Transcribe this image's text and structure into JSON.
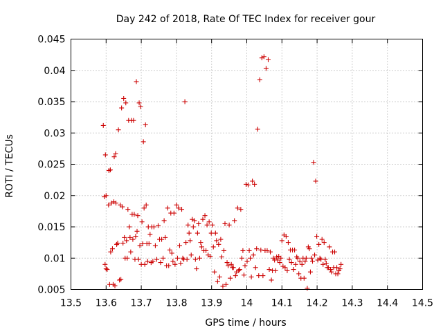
{
  "chart_data": {
    "type": "scatter",
    "title": "Day 242 of 2018, Rate Of TEC Index for receiver gour",
    "xlabel": "GPS time / hours",
    "ylabel": "ROTI / TECUs",
    "xlim": [
      13.5,
      14.5
    ],
    "ylim": [
      0.005,
      0.045
    ],
    "xticks": [
      "13.5",
      "13.6",
      "13.7",
      "13.8",
      "13.9",
      "14",
      "14.1",
      "14.2",
      "14.3",
      "14.4",
      "14.5"
    ],
    "yticks": [
      "0.005",
      "0.01",
      "0.015",
      "0.02",
      "0.025",
      "0.03",
      "0.035",
      "0.04",
      "0.045"
    ],
    "grid": true,
    "marker": "+",
    "color": "#cc0000",
    "series": [
      {
        "name": "ROTI",
        "points": [
          [
            13.592,
            0.0312
          ],
          [
            13.595,
            0.0198
          ],
          [
            13.597,
            0.009
          ],
          [
            13.6,
            0.0083
          ],
          [
            13.598,
            0.0265
          ],
          [
            13.6,
            0.02
          ],
          [
            13.603,
            0.0082
          ],
          [
            13.607,
            0.0185
          ],
          [
            13.608,
            0.024
          ],
          [
            13.61,
            0.0058
          ],
          [
            13.612,
            0.0241
          ],
          [
            13.613,
            0.011
          ],
          [
            13.615,
            0.0188
          ],
          [
            13.618,
            0.0115
          ],
          [
            13.62,
            0.0058
          ],
          [
            13.622,
            0.019
          ],
          [
            13.623,
            0.0262
          ],
          [
            13.625,
            0.0056
          ],
          [
            13.627,
            0.0267
          ],
          [
            13.628,
            0.0188
          ],
          [
            13.63,
            0.0122
          ],
          [
            13.633,
            0.0124
          ],
          [
            13.635,
            0.0305
          ],
          [
            13.638,
            0.0065
          ],
          [
            13.64,
            0.0185
          ],
          [
            13.642,
            0.0066
          ],
          [
            13.644,
            0.034
          ],
          [
            13.646,
            0.0182
          ],
          [
            13.648,
            0.0124
          ],
          [
            13.65,
            0.0355
          ],
          [
            13.652,
            0.0133
          ],
          [
            13.654,
            0.01
          ],
          [
            13.656,
            0.0348
          ],
          [
            13.658,
            0.0128
          ],
          [
            13.66,
            0.01
          ],
          [
            13.662,
            0.0178
          ],
          [
            13.664,
            0.032
          ],
          [
            13.666,
            0.015
          ],
          [
            13.668,
            0.0133
          ],
          [
            13.67,
            0.011
          ],
          [
            13.672,
            0.032
          ],
          [
            13.674,
            0.017
          ],
          [
            13.676,
            0.013
          ],
          [
            13.678,
            0.032
          ],
          [
            13.68,
            0.017
          ],
          [
            13.682,
            0.0098
          ],
          [
            13.684,
            0.0135
          ],
          [
            13.686,
            0.0382
          ],
          [
            13.688,
            0.0143
          ],
          [
            13.69,
            0.0168
          ],
          [
            13.692,
            0.0098
          ],
          [
            13.694,
            0.0348
          ],
          [
            13.696,
            0.012
          ],
          [
            13.698,
            0.0342
          ],
          [
            13.7,
            0.009
          ],
          [
            13.702,
            0.0158
          ],
          [
            13.704,
            0.0123
          ],
          [
            13.706,
            0.0286
          ],
          [
            13.708,
            0.018
          ],
          [
            13.71,
            0.009
          ],
          [
            13.712,
            0.0313
          ],
          [
            13.714,
            0.0185
          ],
          [
            13.716,
            0.0123
          ],
          [
            13.718,
            0.0095
          ],
          [
            13.72,
            0.015
          ],
          [
            13.722,
            0.0123
          ],
          [
            13.725,
            0.0138
          ],
          [
            13.728,
            0.0093
          ],
          [
            13.73,
            0.015
          ],
          [
            13.733,
            0.0095
          ],
          [
            13.736,
            0.015
          ],
          [
            13.74,
            0.012
          ],
          [
            13.744,
            0.0098
          ],
          [
            13.748,
            0.0152
          ],
          [
            13.752,
            0.013
          ],
          [
            13.755,
            0.0093
          ],
          [
            13.758,
            0.013
          ],
          [
            13.762,
            0.01
          ],
          [
            13.765,
            0.016
          ],
          [
            13.768,
            0.0133
          ],
          [
            13.772,
            0.0088
          ],
          [
            13.775,
            0.018
          ],
          [
            13.778,
            0.0088
          ],
          [
            13.781,
            0.0113
          ],
          [
            13.784,
            0.0172
          ],
          [
            13.787,
            0.0108
          ],
          [
            13.79,
            0.0095
          ],
          [
            13.793,
            0.0172
          ],
          [
            13.796,
            0.009
          ],
          [
            13.8,
            0.0185
          ],
          [
            13.803,
            0.01
          ],
          [
            13.806,
            0.018
          ],
          [
            13.809,
            0.012
          ],
          [
            13.812,
            0.0092
          ],
          [
            13.815,
            0.0178
          ],
          [
            13.818,
            0.01
          ],
          [
            13.821,
            0.0098
          ],
          [
            13.824,
            0.035
          ],
          [
            13.827,
            0.0125
          ],
          [
            13.83,
            0.0098
          ],
          [
            13.833,
            0.0153
          ],
          [
            13.836,
            0.014
          ],
          [
            13.839,
            0.0128
          ],
          [
            13.842,
            0.0105
          ],
          [
            13.845,
            0.0162
          ],
          [
            13.848,
            0.015
          ],
          [
            13.851,
            0.016
          ],
          [
            13.854,
            0.0098
          ],
          [
            13.857,
            0.0083
          ],
          [
            13.86,
            0.014
          ],
          [
            13.863,
            0.0155
          ],
          [
            13.866,
            0.01
          ],
          [
            13.869,
            0.0125
          ],
          [
            13.872,
            0.0118
          ],
          [
            13.875,
            0.0162
          ],
          [
            13.878,
            0.0112
          ],
          [
            13.881,
            0.0168
          ],
          [
            13.884,
            0.0112
          ],
          [
            13.887,
            0.0153
          ],
          [
            13.89,
            0.0105
          ],
          [
            13.893,
            0.0158
          ],
          [
            13.896,
            0.0103
          ],
          [
            13.899,
            0.014
          ],
          [
            13.902,
            0.0153
          ],
          [
            13.905,
            0.0118
          ],
          [
            13.908,
            0.0078
          ],
          [
            13.911,
            0.014
          ],
          [
            13.914,
            0.0128
          ],
          [
            13.917,
            0.0063
          ],
          [
            13.92,
            0.0122
          ],
          [
            13.923,
            0.007
          ],
          [
            13.926,
            0.013
          ],
          [
            13.929,
            0.0102
          ],
          [
            13.932,
            0.0055
          ],
          [
            13.935,
            0.0112
          ],
          [
            13.938,
            0.0155
          ],
          [
            13.941,
            0.0058
          ],
          [
            13.944,
            0.0093
          ],
          [
            13.947,
            0.0088
          ],
          [
            13.95,
            0.0153
          ],
          [
            13.953,
            0.0068
          ],
          [
            13.956,
            0.009
          ],
          [
            13.959,
            0.0085
          ],
          [
            13.962,
            0.0085
          ],
          [
            13.965,
            0.016
          ],
          [
            13.968,
            0.0072
          ],
          [
            13.971,
            0.0078
          ],
          [
            13.974,
            0.018
          ],
          [
            13.977,
            0.008
          ],
          [
            13.98,
            0.0082
          ],
          [
            13.983,
            0.0178
          ],
          [
            13.986,
            0.01
          ],
          [
            13.989,
            0.0112
          ],
          [
            13.992,
            0.0073
          ],
          [
            13.995,
            0.0088
          ],
          [
            13.998,
            0.0218
          ],
          [
            14.001,
            0.0095
          ],
          [
            14.004,
            0.0217
          ],
          [
            14.007,
            0.0112
          ],
          [
            14.01,
            0.01
          ],
          [
            14.013,
            0.007
          ],
          [
            14.016,
            0.0223
          ],
          [
            14.019,
            0.0105
          ],
          [
            14.022,
            0.0218
          ],
          [
            14.025,
            0.0085
          ],
          [
            14.028,
            0.0115
          ],
          [
            14.031,
            0.0306
          ],
          [
            14.034,
            0.0072
          ],
          [
            14.037,
            0.0385
          ],
          [
            14.04,
            0.0113
          ],
          [
            14.043,
            0.042
          ],
          [
            14.046,
            0.0072
          ],
          [
            14.049,
            0.0422
          ],
          [
            14.052,
            0.0112
          ],
          [
            14.055,
            0.0403
          ],
          [
            14.058,
            0.0112
          ],
          [
            14.061,
            0.0417
          ],
          [
            14.064,
            0.0082
          ],
          [
            14.067,
            0.011
          ],
          [
            14.07,
            0.0065
          ],
          [
            14.073,
            0.008
          ],
          [
            14.076,
            0.01
          ],
          [
            14.079,
            0.0097
          ],
          [
            14.082,
            0.008
          ],
          [
            14.085,
            0.0102
          ],
          [
            14.088,
            0.0097
          ],
          [
            14.091,
            0.0103
          ],
          [
            14.094,
            0.0093
          ],
          [
            14.097,
            0.01
          ],
          [
            14.1,
            0.0128
          ],
          [
            14.103,
            0.0087
          ],
          [
            14.106,
            0.0137
          ],
          [
            14.109,
            0.0085
          ],
          [
            14.112,
            0.0135
          ],
          [
            14.115,
            0.008
          ],
          [
            14.118,
            0.0125
          ],
          [
            14.121,
            0.0098
          ],
          [
            14.124,
            0.0113
          ],
          [
            14.127,
            0.0093
          ],
          [
            14.13,
            0.0113
          ],
          [
            14.133,
            0.0082
          ],
          [
            14.136,
            0.0113
          ],
          [
            14.139,
            0.009
          ],
          [
            14.142,
            0.0102
          ],
          [
            14.145,
            0.01
          ],
          [
            14.148,
            0.0075
          ],
          [
            14.151,
            0.0095
          ],
          [
            14.154,
            0.0068
          ],
          [
            14.157,
            0.009
          ],
          [
            14.16,
            0.01
          ],
          [
            14.163,
            0.0068
          ],
          [
            14.166,
            0.0095
          ],
          [
            14.169,
            0.01
          ],
          [
            14.172,
            0.0052
          ],
          [
            14.175,
            0.0118
          ],
          [
            14.178,
            0.0115
          ],
          [
            14.181,
            0.0078
          ],
          [
            14.184,
            0.01
          ],
          [
            14.187,
            0.0095
          ],
          [
            14.19,
            0.0253
          ],
          [
            14.193,
            0.0105
          ],
          [
            14.196,
            0.0223
          ],
          [
            14.199,
            0.0135
          ],
          [
            14.202,
            0.0097
          ],
          [
            14.205,
            0.0122
          ],
          [
            14.208,
            0.01
          ],
          [
            14.211,
            0.0098
          ],
          [
            14.214,
            0.013
          ],
          [
            14.217,
            0.009
          ],
          [
            14.22,
            0.0125
          ],
          [
            14.223,
            0.0098
          ],
          [
            14.226,
            0.0092
          ],
          [
            14.229,
            0.0085
          ],
          [
            14.232,
            0.0085
          ],
          [
            14.235,
            0.0118
          ],
          [
            14.238,
            0.0082
          ],
          [
            14.241,
            0.0078
          ],
          [
            14.244,
            0.011
          ],
          [
            14.247,
            0.0085
          ],
          [
            14.25,
            0.011
          ],
          [
            14.253,
            0.0075
          ],
          [
            14.256,
            0.0085
          ],
          [
            14.259,
            0.0075
          ],
          [
            14.262,
            0.008
          ],
          [
            14.265,
            0.0083
          ],
          [
            14.268,
            0.009
          ]
        ]
      }
    ]
  }
}
